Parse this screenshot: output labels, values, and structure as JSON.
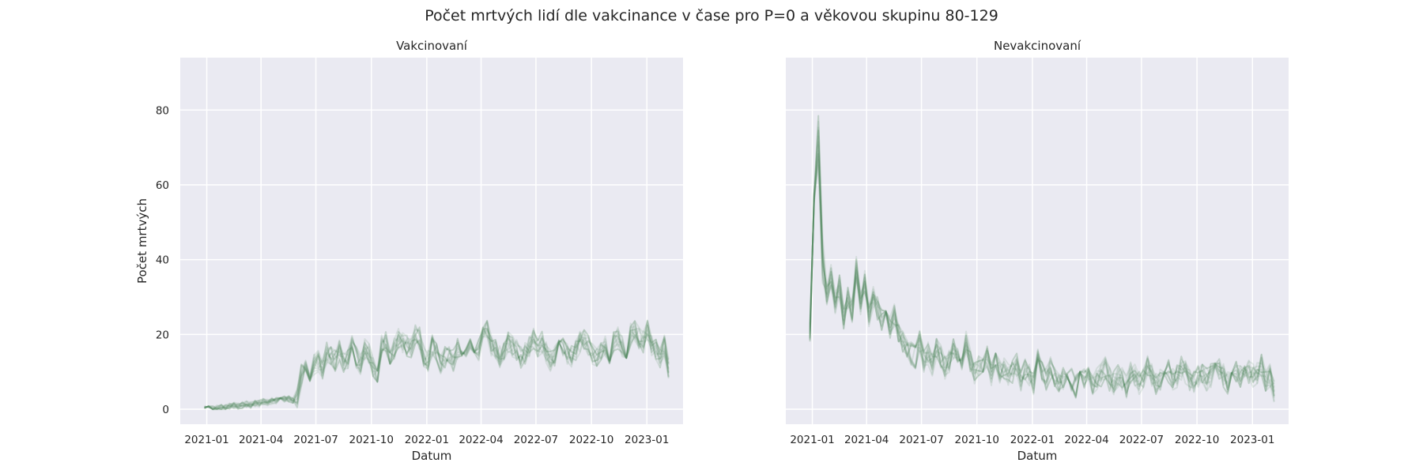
{
  "suptitle": "Počet mrtvých lidí dle vakcinance v čase pro P=0 a věkovou skupinu 80-129",
  "style": {
    "facecolor": "#eaeaf2",
    "gridcolor": "#ffffff",
    "linecolor": "#4e8a5a"
  },
  "chart_data": [
    {
      "type": "line",
      "title": "Vakcinovaní",
      "xlabel": "Datum",
      "ylabel": "Počet mrtvých",
      "xlim": [
        "2020-11-18",
        "2023-03-02"
      ],
      "ylim": [
        -4,
        94
      ],
      "grid": true,
      "xticks": [
        "2021-01",
        "2021-04",
        "2021-07",
        "2021-10",
        "2022-01",
        "2022-04",
        "2022-07",
        "2022-10",
        "2023-01"
      ],
      "yticks": [
        0,
        20,
        40,
        60,
        80
      ],
      "x_start": "2020-12-28",
      "x_step": "1 week",
      "series_count": 12,
      "mean": [
        0,
        0,
        0,
        0.3,
        0.6,
        0.4,
        0.8,
        1,
        0.8,
        1.1,
        1.4,
        1.2,
        1.6,
        1.5,
        2,
        1.8,
        2.2,
        2.4,
        2.2,
        2.6,
        2.8,
        2.5,
        3,
        9,
        11,
        10,
        12,
        13,
        11,
        15,
        14,
        13,
        16,
        12,
        13,
        17,
        14,
        12,
        16,
        15,
        11,
        9,
        17,
        18,
        15,
        16,
        19,
        18,
        17,
        16,
        20,
        19,
        14,
        13,
        17,
        16,
        12,
        14,
        15,
        13,
        16,
        14,
        15,
        17,
        18,
        16,
        19,
        22,
        17,
        16,
        14,
        15,
        18,
        17,
        16,
        14,
        15,
        17,
        19,
        16,
        18,
        15,
        13,
        14,
        16,
        17,
        15,
        14,
        16,
        18,
        19,
        17,
        15,
        14,
        16,
        17,
        15,
        18,
        19,
        17,
        16,
        20,
        21,
        19,
        18,
        21,
        17,
        16,
        14,
        17,
        11
      ],
      "spread": 3
    },
    {
      "type": "line",
      "title": "Nevakcinovaní",
      "xlabel": "Datum",
      "ylabel": "",
      "xlim": [
        "2020-11-18",
        "2023-03-02"
      ],
      "ylim": [
        -4,
        94
      ],
      "grid": true,
      "xticks": [
        "2021-01",
        "2021-04",
        "2021-07",
        "2021-10",
        "2022-01",
        "2022-04",
        "2022-07",
        "2022-10",
        "2023-01"
      ],
      "yticks": [
        0,
        20,
        40,
        60,
        80
      ],
      "x_start": "2020-12-28",
      "x_step": "1 week",
      "series_count": 12,
      "mean": [
        25,
        55,
        72,
        40,
        30,
        36,
        28,
        33,
        24,
        30,
        26,
        38,
        28,
        34,
        25,
        30,
        27,
        24,
        26,
        22,
        25,
        20,
        18,
        16,
        15,
        14,
        18,
        13,
        15,
        12,
        17,
        14,
        11,
        13,
        16,
        15,
        12,
        18,
        13,
        10,
        12,
        11,
        14,
        9,
        12,
        10,
        11,
        9,
        10,
        12,
        8,
        11,
        9,
        7,
        13,
        10,
        8,
        11,
        9,
        7,
        8,
        10,
        8,
        6,
        9,
        8,
        10,
        7,
        8,
        9,
        11,
        8,
        7,
        9,
        8,
        6,
        10,
        9,
        7,
        8,
        12,
        9,
        7,
        8,
        9,
        10,
        8,
        9,
        11,
        10,
        8,
        7,
        9,
        10,
        8,
        9,
        10,
        11,
        9,
        7,
        8,
        10,
        9,
        11,
        10,
        9,
        10,
        12,
        8,
        9,
        5
      ],
      "spread": 3.2
    }
  ]
}
